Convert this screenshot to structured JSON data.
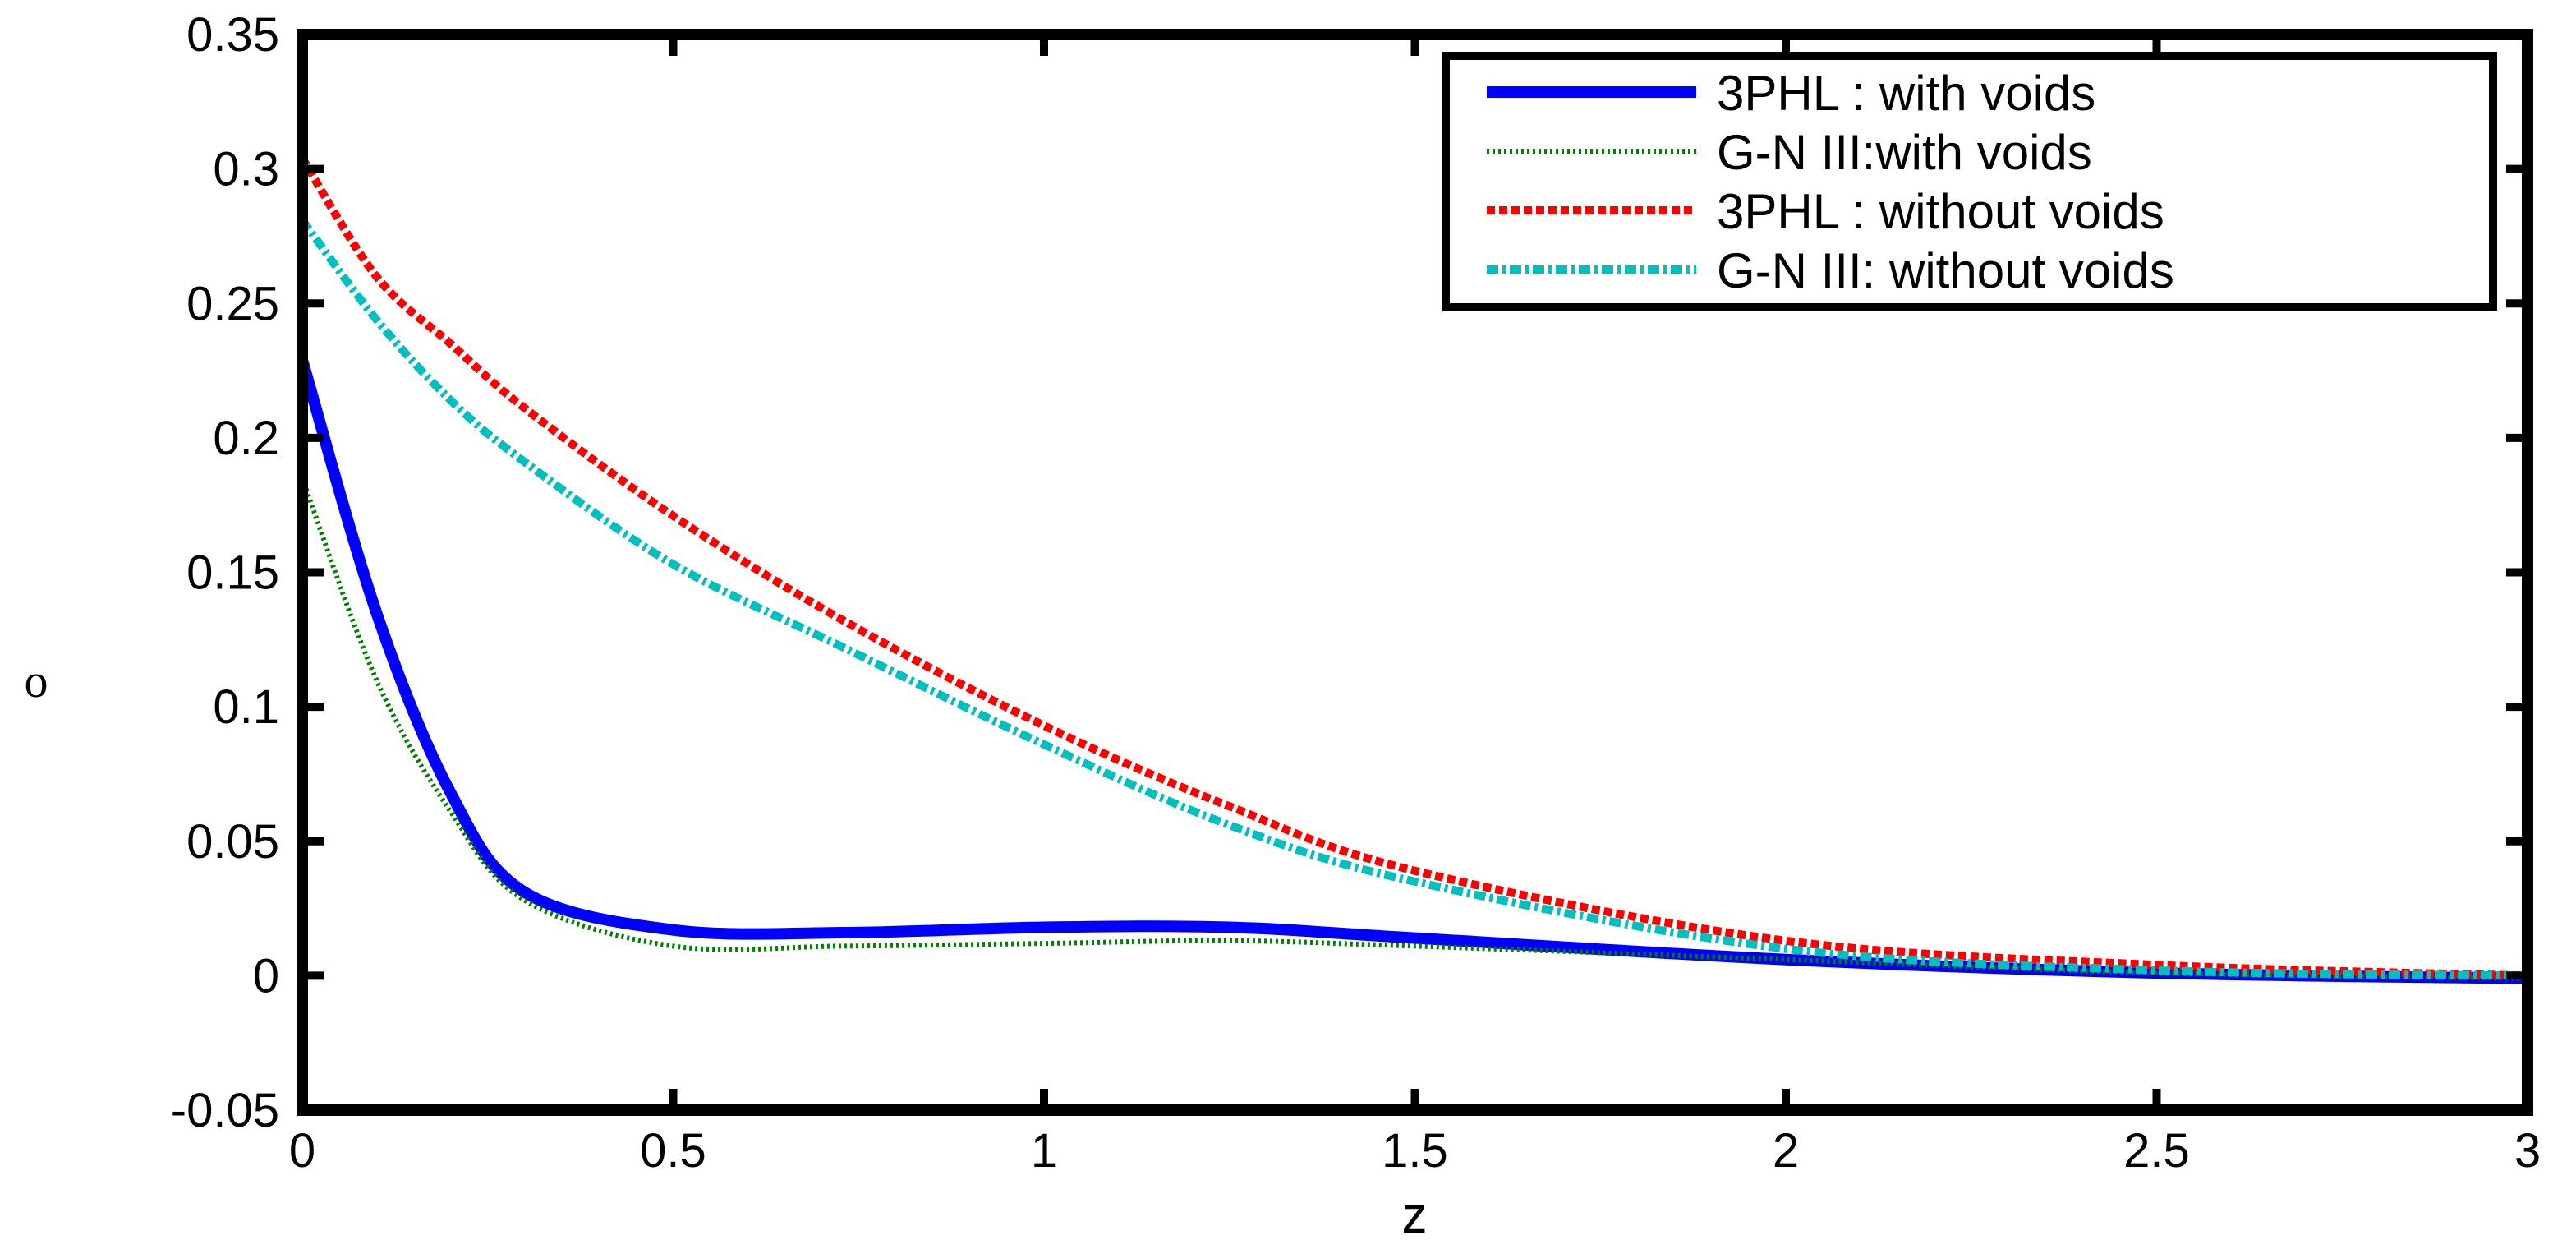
{
  "chart_data": {
    "type": "line",
    "title": "",
    "xlabel": "z",
    "ylabel": "o",
    "xlim": [
      0,
      3
    ],
    "ylim": [
      -0.05,
      0.35
    ],
    "xticks": [
      0,
      0.5,
      1,
      1.5,
      2,
      2.5,
      3
    ],
    "xtick_labels": [
      "0",
      "0.5",
      "1",
      "1.5",
      "2",
      "2.5",
      "3"
    ],
    "yticks": [
      -0.05,
      0,
      0.05,
      0.1,
      0.15,
      0.2,
      0.25,
      0.3,
      0.35
    ],
    "ytick_labels": [
      "-0.05",
      "0",
      "0.05",
      "0.1",
      "0.15",
      "0.2",
      "0.25",
      "0.3",
      "0.35"
    ],
    "grid": false,
    "legend_position": "upper right",
    "x": [
      0,
      0.1,
      0.2,
      0.3,
      0.5,
      0.73,
      1.0,
      1.25,
      1.5,
      2.0,
      2.5,
      3.0
    ],
    "series": [
      {
        "name": "3PHL : with voids",
        "color": "#0000ff",
        "style": "solid",
        "values": [
          0.229,
          0.135,
          0.068,
          0.031,
          0.017,
          0.016,
          0.018,
          0.018,
          0.014,
          0.006,
          0.001,
          -0.001
        ]
      },
      {
        "name": "G-N III:with voids",
        "color": "#008000",
        "style": "dotted",
        "values": [
          0.185,
          0.11,
          0.061,
          0.028,
          0.011,
          0.011,
          0.012,
          0.013,
          0.011,
          0.006,
          0.001,
          -0.001
        ]
      },
      {
        "name": "3PHL : without voids",
        "color": "#ff0000",
        "style": "dashed",
        "values": [
          0.304,
          0.26,
          0.235,
          0.211,
          0.171,
          0.132,
          0.093,
          0.063,
          0.039,
          0.013,
          0.004,
          0.0
        ]
      },
      {
        "name": "G-N III: without voids",
        "color": "#00bfbf",
        "style": "dashdot",
        "values": [
          0.281,
          0.244,
          0.214,
          0.191,
          0.153,
          0.122,
          0.086,
          0.056,
          0.035,
          0.01,
          0.002,
          0.0
        ]
      }
    ]
  }
}
